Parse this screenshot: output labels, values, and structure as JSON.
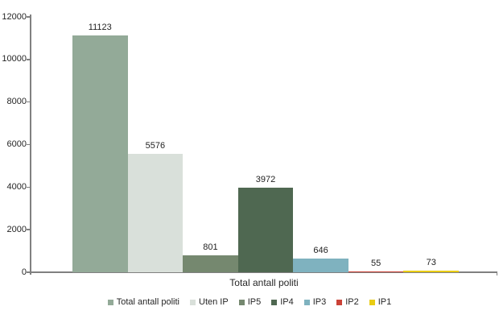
{
  "chart_data": {
    "type": "bar",
    "title": "",
    "categories": [
      "Total antall politi"
    ],
    "series": [
      {
        "name": "Total antall politi",
        "value": 11123,
        "color": "#93AA98"
      },
      {
        "name": "Uten IP",
        "value": 5576,
        "color": "#D9E0DA"
      },
      {
        "name": "IP5",
        "value": 801,
        "color": "#75886F"
      },
      {
        "name": "IP4",
        "value": 3972,
        "color": "#4F6851"
      },
      {
        "name": "IP3",
        "value": 646,
        "color": "#7FB2BF"
      },
      {
        "name": "IP2",
        "value": 55,
        "color": "#CB4237"
      },
      {
        "name": "IP1",
        "value": 73,
        "color": "#E9CC13"
      }
    ],
    "xlabel": "Total antall politi",
    "ylabel": "",
    "ylim": [
      0,
      12000
    ],
    "yticks": [
      0,
      2000,
      4000,
      6000,
      8000,
      10000,
      12000
    ],
    "grid": false,
    "legend_position": "bottom",
    "data_labels": true,
    "axis_color": "#808080",
    "text_color": "#262626"
  }
}
